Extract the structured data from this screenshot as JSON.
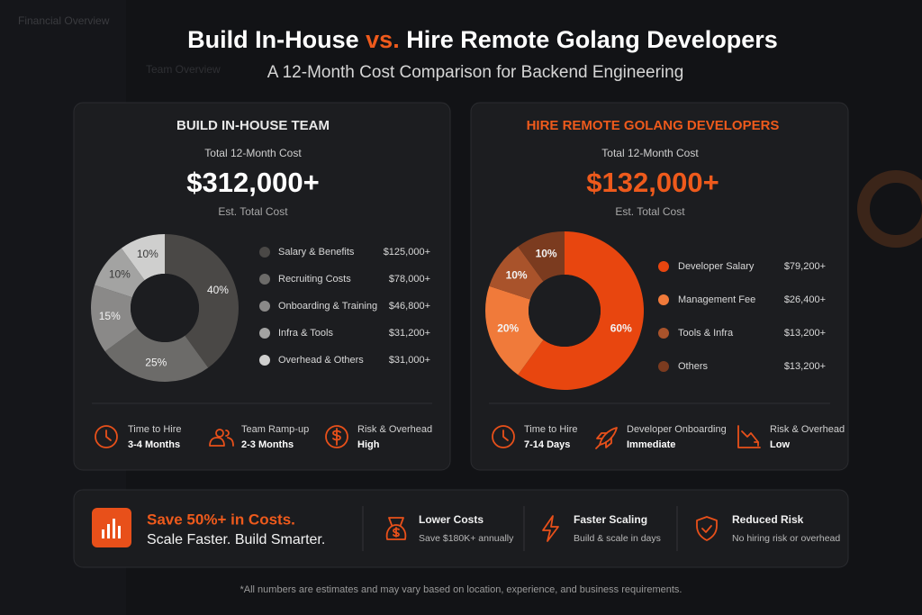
{
  "background": {
    "sidebar_title": "Financial Overview",
    "panel_title": "Team Overview"
  },
  "header": {
    "title": [
      "Build In-House ",
      "vs.",
      " Hire Remote Golang Developers"
    ],
    "subtitle": "A 12-Month Cost Comparison for Backend Engineering"
  },
  "cards": [
    {
      "title": "BUILD IN-HOUSE TEAM",
      "total_label": "Total 12-Month Cost",
      "total": "$312,000+",
      "total_note": "Est. Total Cost",
      "amounts": [
        "$125,000+",
        "$78,000+",
        "$46,800+",
        "$31,200+",
        "$31,000+"
      ],
      "stats": [
        {
          "label": "Time to Hire",
          "value": "3-4 Months"
        },
        {
          "label": "Team Ramp-up",
          "value": "2-3 Months"
        },
        {
          "label": "Risk & Overhead",
          "value": "High"
        }
      ]
    },
    {
      "title": "HIRE REMOTE GOLANG DEVELOPERS",
      "total_label": "Total 12-Month Cost",
      "total": "$132,000+",
      "total_note": "Est. Total Cost",
      "amounts": [
        "$79,200+",
        "$26,400+",
        "$13,200+",
        "$13,200+"
      ],
      "stats": [
        {
          "label": "Time to Hire",
          "value": "7-14 Days"
        },
        {
          "label": "Developer Onboarding",
          "value": "Immediate"
        },
        {
          "label": "Risk & Overhead",
          "value": "Low"
        }
      ]
    }
  ],
  "chart_data": [
    {
      "type": "pie",
      "donut": true,
      "categories": [
        "Salary & Benefits",
        "Recruiting Costs",
        "Onboarding & Training",
        "Infra & Tools",
        "Overhead & Others"
      ],
      "values": [
        40,
        25,
        15,
        10,
        10
      ],
      "value_labels": [
        "40%",
        "25%",
        "15%",
        "10%",
        "10%"
      ],
      "colors": [
        "#4a4846",
        "#6c6b69",
        "#8a8988",
        "#a3a3a2",
        "#cfcfce"
      ]
    },
    {
      "type": "pie",
      "donut": true,
      "categories": [
        "Developer Salary",
        "Management Fee",
        "Tools & Infra",
        "Others"
      ],
      "values": [
        60,
        20,
        10,
        10
      ],
      "value_labels": [
        "60%",
        "20%",
        "10%",
        "10%"
      ],
      "colors": [
        "#e8460f",
        "#f07a3a",
        "#a9532b",
        "#7b3b1f"
      ]
    }
  ],
  "banner": {
    "headline": "Save 50%+ in Costs.",
    "tagline": "Scale Faster. Build Smarter.",
    "features": [
      {
        "title": "Lower Costs",
        "text": "Save $180K+ annually"
      },
      {
        "title": "Faster Scaling",
        "text": "Build & scale in days"
      },
      {
        "title": "Reduced Risk",
        "text": "No hiring risk or overhead"
      }
    ]
  },
  "footnote": "*All numbers are estimates and may vary based on location, experience, and business requirements."
}
